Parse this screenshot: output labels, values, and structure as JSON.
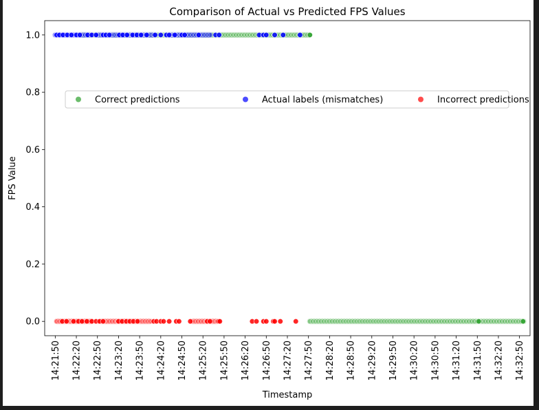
{
  "chart_data": {
    "type": "scatter",
    "title": "Comparison of Actual vs Predicted FPS Values",
    "xlabel": "Timestamp",
    "ylabel": "FPS Value",
    "x_axis_kind": "time",
    "xlim": [
      "14:21:35",
      "14:33:05"
    ],
    "ylim": [
      -0.05,
      1.05
    ],
    "x_ticks": [
      "14:21:50",
      "14:22:20",
      "14:22:50",
      "14:23:20",
      "14:23:50",
      "14:24:20",
      "14:24:50",
      "14:25:20",
      "14:25:50",
      "14:26:20",
      "14:26:50",
      "14:27:20",
      "14:27:50",
      "14:28:20",
      "14:28:50",
      "14:29:20",
      "14:29:50",
      "14:30:20",
      "14:30:50",
      "14:31:20",
      "14:31:50",
      "14:32:20",
      "14:32:50"
    ],
    "y_ticks": [
      "0.0",
      "0.2",
      "0.4",
      "0.6",
      "0.8",
      "1.0"
    ],
    "grid": false,
    "legend": {
      "position": "upper-center",
      "columns": 3
    },
    "series": [
      {
        "name": "Correct predictions",
        "color": "#2ca02c",
        "dense_runs": [
          {
            "start": "14:22:25",
            "end": "14:27:52",
            "y": 1
          },
          {
            "start": "14:27:52",
            "end": "14:32:56",
            "y": 0
          }
        ],
        "points": [
          {
            "x": "14:27:52",
            "y": 1
          },
          {
            "x": "14:31:52",
            "y": 0
          },
          {
            "x": "14:32:55",
            "y": 0
          }
        ]
      },
      {
        "name": "Actual labels (mismatches)",
        "color": "#0000ff",
        "dense_runs": [
          {
            "start": "14:21:50",
            "end": "14:22:40",
            "y": 1
          },
          {
            "start": "14:22:50",
            "end": "14:24:10",
            "y": 1
          },
          {
            "start": "14:24:30",
            "end": "14:25:30",
            "y": 1
          }
        ],
        "points": [
          {
            "x": "14:21:52",
            "y": 1
          },
          {
            "x": "14:21:56",
            "y": 1
          },
          {
            "x": "14:22:01",
            "y": 1
          },
          {
            "x": "14:22:07",
            "y": 1
          },
          {
            "x": "14:22:13",
            "y": 1
          },
          {
            "x": "14:22:20",
            "y": 1
          },
          {
            "x": "14:22:25",
            "y": 1
          },
          {
            "x": "14:22:36",
            "y": 1
          },
          {
            "x": "14:22:42",
            "y": 1
          },
          {
            "x": "14:22:48",
            "y": 1
          },
          {
            "x": "14:22:58",
            "y": 1
          },
          {
            "x": "14:23:02",
            "y": 1
          },
          {
            "x": "14:23:07",
            "y": 1
          },
          {
            "x": "14:23:21",
            "y": 1
          },
          {
            "x": "14:23:26",
            "y": 1
          },
          {
            "x": "14:23:32",
            "y": 1
          },
          {
            "x": "14:23:40",
            "y": 1
          },
          {
            "x": "14:23:46",
            "y": 1
          },
          {
            "x": "14:23:52",
            "y": 1
          },
          {
            "x": "14:24:00",
            "y": 1
          },
          {
            "x": "14:24:12",
            "y": 1
          },
          {
            "x": "14:24:20",
            "y": 1
          },
          {
            "x": "14:24:28",
            "y": 1
          },
          {
            "x": "14:24:32",
            "y": 1
          },
          {
            "x": "14:24:40",
            "y": 1
          },
          {
            "x": "14:24:50",
            "y": 1
          },
          {
            "x": "14:24:54",
            "y": 1
          },
          {
            "x": "14:25:14",
            "y": 1
          },
          {
            "x": "14:25:38",
            "y": 1
          },
          {
            "x": "14:25:43",
            "y": 1
          },
          {
            "x": "14:26:40",
            "y": 1
          },
          {
            "x": "14:26:46",
            "y": 1
          },
          {
            "x": "14:26:50",
            "y": 1
          },
          {
            "x": "14:27:02",
            "y": 1
          },
          {
            "x": "14:27:14",
            "y": 1
          },
          {
            "x": "14:27:38",
            "y": 1
          }
        ]
      },
      {
        "name": "Incorrect predictions",
        "color": "#ff0000",
        "dense_runs": [
          {
            "start": "14:21:52",
            "end": "14:22:42",
            "y": 0
          },
          {
            "start": "14:22:55",
            "end": "14:24:05",
            "y": 0
          },
          {
            "start": "14:25:05",
            "end": "14:25:40",
            "y": 0
          }
        ],
        "points": [
          {
            "x": "14:22:00",
            "y": 0
          },
          {
            "x": "14:22:06",
            "y": 0
          },
          {
            "x": "14:22:16",
            "y": 0
          },
          {
            "x": "14:22:23",
            "y": 0
          },
          {
            "x": "14:22:28",
            "y": 0
          },
          {
            "x": "14:22:35",
            "y": 0
          },
          {
            "x": "14:22:42",
            "y": 0
          },
          {
            "x": "14:22:48",
            "y": 0
          },
          {
            "x": "14:22:53",
            "y": 0
          },
          {
            "x": "14:22:58",
            "y": 0
          },
          {
            "x": "14:23:20",
            "y": 0
          },
          {
            "x": "14:23:25",
            "y": 0
          },
          {
            "x": "14:23:31",
            "y": 0
          },
          {
            "x": "14:23:36",
            "y": 0
          },
          {
            "x": "14:23:41",
            "y": 0
          },
          {
            "x": "14:23:47",
            "y": 0
          },
          {
            "x": "14:24:10",
            "y": 0
          },
          {
            "x": "14:24:14",
            "y": 0
          },
          {
            "x": "14:24:20",
            "y": 0
          },
          {
            "x": "14:24:24",
            "y": 0
          },
          {
            "x": "14:24:32",
            "y": 0
          },
          {
            "x": "14:24:42",
            "y": 0
          },
          {
            "x": "14:24:46",
            "y": 0
          },
          {
            "x": "14:25:02",
            "y": 0
          },
          {
            "x": "14:25:26",
            "y": 0
          },
          {
            "x": "14:25:30",
            "y": 0
          },
          {
            "x": "14:25:42",
            "y": 0
          },
          {
            "x": "14:25:44",
            "y": 0
          },
          {
            "x": "14:26:30",
            "y": 0
          },
          {
            "x": "14:26:36",
            "y": 0
          },
          {
            "x": "14:26:46",
            "y": 0
          },
          {
            "x": "14:26:50",
            "y": 0
          },
          {
            "x": "14:27:00",
            "y": 0
          },
          {
            "x": "14:27:02",
            "y": 0
          },
          {
            "x": "14:27:10",
            "y": 0
          },
          {
            "x": "14:27:32",
            "y": 0
          }
        ]
      }
    ]
  }
}
